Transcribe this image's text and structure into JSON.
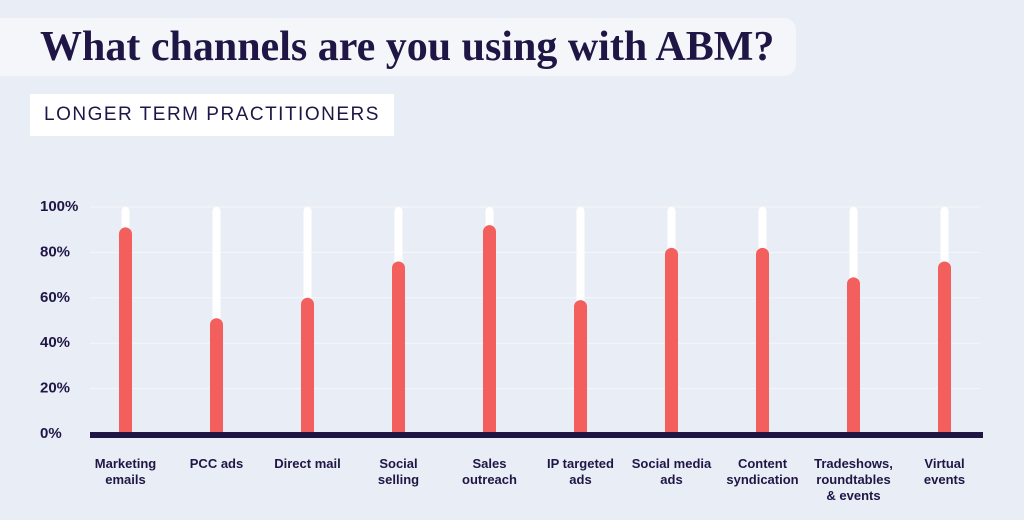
{
  "chart_data": {
    "type": "bar",
    "title": "What channels are you using with ABM?",
    "subtitle": "LONGER TERM PRACTITIONERS",
    "categories": [
      "Marketing\nemails",
      "PCC ads",
      "Direct mail",
      "Social\nselling",
      "Sales\noutreach",
      "IP targeted\nads",
      "Social media\nads",
      "Content\nsyndication",
      "Tradeshows,\nroundtables\n& events",
      "Virtual\nevents"
    ],
    "values": [
      91,
      51,
      60,
      76,
      92,
      59,
      82,
      82,
      69,
      76
    ],
    "color": "#f25f5c",
    "ylim": [
      0,
      100
    ],
    "yticks": [
      {
        "value": 0,
        "label": "0%"
      },
      {
        "value": 20,
        "label": "20%"
      },
      {
        "value": 40,
        "label": "40%"
      },
      {
        "value": 60,
        "label": "60%"
      },
      {
        "value": 80,
        "label": "80%"
      },
      {
        "value": 100,
        "label": "100%"
      }
    ],
    "grid": true
  }
}
